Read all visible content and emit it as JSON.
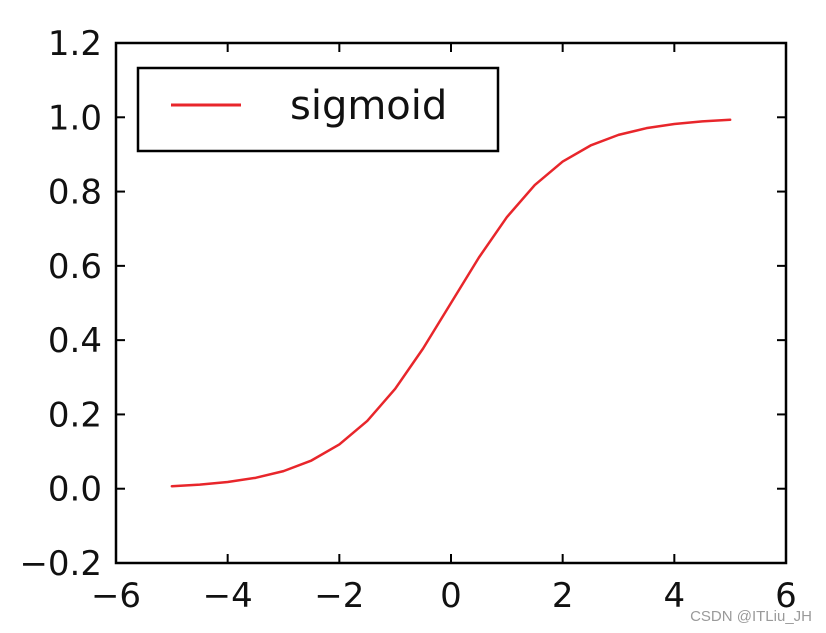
{
  "chart_data": {
    "type": "line",
    "title": "",
    "xlabel": "",
    "ylabel": "",
    "xlim": [
      -6,
      6
    ],
    "ylim": [
      -0.2,
      1.2
    ],
    "x_ticks": [
      -6,
      -4,
      -2,
      0,
      2,
      4,
      6
    ],
    "y_ticks": [
      -0.2,
      0.0,
      0.2,
      0.4,
      0.6,
      0.8,
      1.0,
      1.2
    ],
    "x_tick_labels": [
      "−6",
      "−4",
      "−2",
      "0",
      "2",
      "4",
      "6"
    ],
    "y_tick_labels": [
      "−0.2",
      "0.0",
      "0.2",
      "0.4",
      "0.6",
      "0.8",
      "1.0",
      "1.2"
    ],
    "grid": false,
    "legend_position": "top-left",
    "series": [
      {
        "name": "sigmoid",
        "color": "#e8262b",
        "x": [
          -5,
          -4.5,
          -4,
          -3.5,
          -3,
          -2.5,
          -2,
          -1.5,
          -1,
          -0.5,
          0,
          0.5,
          1,
          1.5,
          2,
          2.5,
          3,
          3.5,
          4,
          4.5,
          5
        ],
        "y": [
          0.0067,
          0.011,
          0.018,
          0.0293,
          0.0474,
          0.0759,
          0.1192,
          0.1824,
          0.2689,
          0.3775,
          0.5,
          0.6225,
          0.7311,
          0.8176,
          0.8808,
          0.9241,
          0.9526,
          0.9707,
          0.982,
          0.989,
          0.9933
        ]
      }
    ]
  },
  "watermark": "CSDN @ITLiu_JH"
}
